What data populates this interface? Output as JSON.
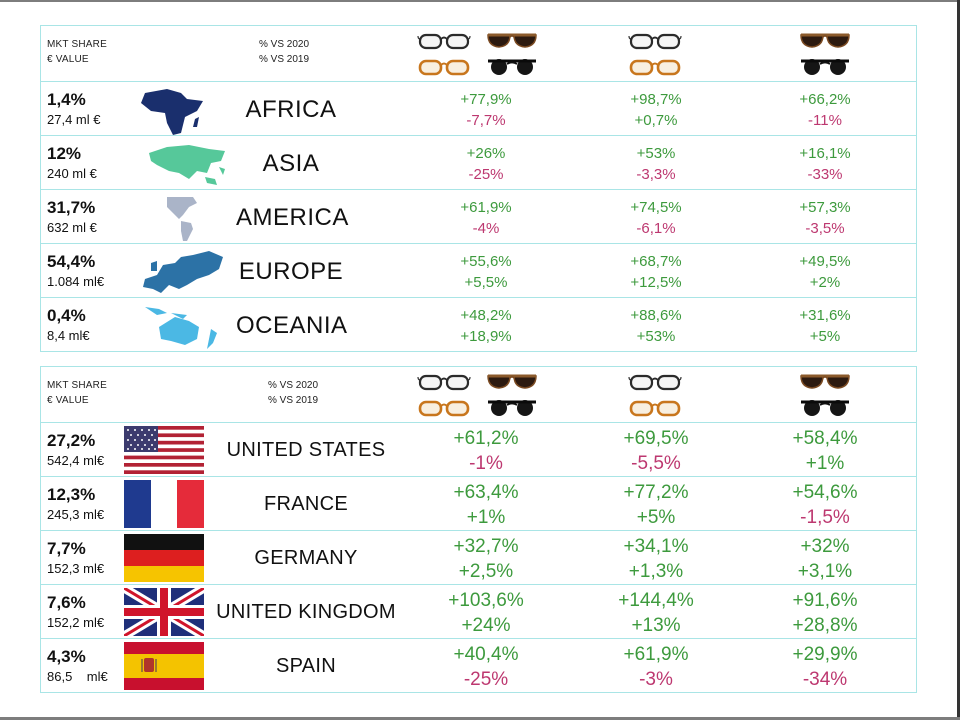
{
  "table1": {
    "header": {
      "left_line1": "MKT SHARE",
      "left_line2": "€ VALUE",
      "mid_line1": "% VS 2020",
      "mid_line2": "% VS 2019",
      "columns": [
        {
          "icon": "optical-and-sun-glasses-icon"
        },
        {
          "icon": "optical-glasses-icon"
        },
        {
          "icon": "sunglasses-icon"
        }
      ]
    },
    "rows": [
      {
        "share": "1,4%",
        "value": "27,4 ml €",
        "name": "AFRICA",
        "icon": "africa-map-icon",
        "vals": [
          [
            "+77,9%",
            "-7,7%"
          ],
          [
            "+98,7%",
            "+0,7%"
          ],
          [
            "+66,2%",
            "-11%"
          ]
        ]
      },
      {
        "share": "12%",
        "value": "240 ml €",
        "name": "ASIA",
        "icon": "asia-map-icon",
        "vals": [
          [
            "+26%",
            "-25%"
          ],
          [
            "+53%",
            "-3,3%"
          ],
          [
            "+16,1%",
            "-33%"
          ]
        ]
      },
      {
        "share": "31,7%",
        "value": "632 ml €",
        "name": "AMERICA",
        "icon": "america-map-icon",
        "vals": [
          [
            "+61,9%",
            "-4%"
          ],
          [
            "+74,5%",
            "-6,1%"
          ],
          [
            "+57,3%",
            "-3,5%"
          ]
        ]
      },
      {
        "share": "54,4%",
        "value": "1.084 ml€",
        "name": "EUROPE",
        "icon": "europe-map-icon",
        "vals": [
          [
            "+55,6%",
            "+5,5%"
          ],
          [
            "+68,7%",
            "+12,5%"
          ],
          [
            "+49,5%",
            "+2%"
          ]
        ]
      },
      {
        "share": "0,4%",
        "value": "8,4 ml€",
        "name": "OCEANIA",
        "icon": "oceania-map-icon",
        "vals": [
          [
            "+48,2%",
            "+18,9%"
          ],
          [
            "+88,6%",
            "+53%"
          ],
          [
            "+31,6%",
            "+5%"
          ]
        ]
      }
    ]
  },
  "table2": {
    "header": {
      "left_line1": "MKT SHARE",
      "left_line2": "€ VALUE",
      "mid_line1": "% VS 2020",
      "mid_line2": "% VS 2019"
    },
    "rows": [
      {
        "share": "27,2%",
        "value": "542,4 ml€",
        "name": "UNITED STATES",
        "icon": "usa-flag-icon",
        "vals": [
          [
            "+61,2%",
            "-1%"
          ],
          [
            "+69,5%",
            "-5,5%"
          ],
          [
            "+58,4%",
            "+1%"
          ]
        ]
      },
      {
        "share": "12,3%",
        "value": "245,3 ml€",
        "name": "FRANCE",
        "icon": "france-flag-icon",
        "vals": [
          [
            "+63,4%",
            "+1%"
          ],
          [
            "+77,2%",
            "+5%"
          ],
          [
            "+54,6%",
            "-1,5%"
          ]
        ]
      },
      {
        "share": "7,7%",
        "value": "152,3 ml€",
        "name": "GERMANY",
        "icon": "germany-flag-icon",
        "vals": [
          [
            "+32,7%",
            "+2,5%"
          ],
          [
            "+34,1%",
            "+1,3%"
          ],
          [
            "+32%",
            "+3,1%"
          ]
        ]
      },
      {
        "share": "7,6%",
        "value": "152,2 ml€",
        "name": "UNITED KINGDOM",
        "icon": "uk-flag-icon",
        "vals": [
          [
            "+103,6%",
            "+24%"
          ],
          [
            "+144,4%",
            "+13%"
          ],
          [
            "+91,6%",
            "+28,8%"
          ]
        ]
      },
      {
        "share": "4,3%",
        "value": "86,5    ml€",
        "name": "SPAIN",
        "icon": "spain-flag-icon",
        "vals": [
          [
            "+40,4%",
            "-25%"
          ],
          [
            "+61,9%",
            "-3%"
          ],
          [
            "+29,9%",
            "-34%"
          ]
        ]
      }
    ]
  },
  "colors": {
    "positive": "#3d9a3d",
    "negative": "#bd3870",
    "grid": "#a9e5e6"
  }
}
